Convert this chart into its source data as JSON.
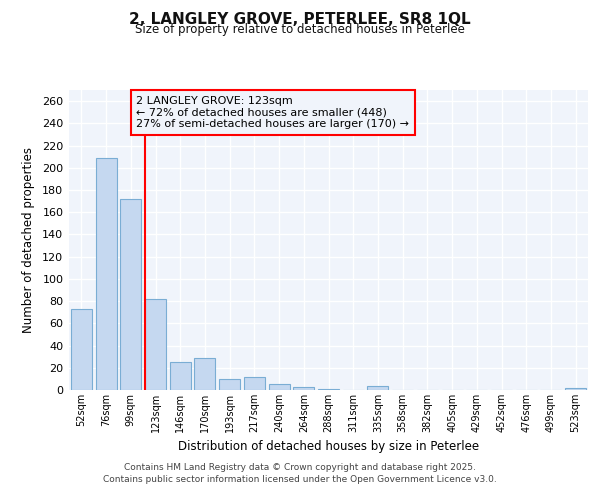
{
  "title1": "2, LANGLEY GROVE, PETERLEE, SR8 1QL",
  "title2": "Size of property relative to detached houses in Peterlee",
  "xlabel": "Distribution of detached houses by size in Peterlee",
  "ylabel": "Number of detached properties",
  "categories": [
    "52sqm",
    "76sqm",
    "99sqm",
    "123sqm",
    "146sqm",
    "170sqm",
    "193sqm",
    "217sqm",
    "240sqm",
    "264sqm",
    "288sqm",
    "311sqm",
    "335sqm",
    "358sqm",
    "382sqm",
    "405sqm",
    "429sqm",
    "452sqm",
    "476sqm",
    "499sqm",
    "523sqm"
  ],
  "values": [
    73,
    209,
    172,
    82,
    25,
    29,
    10,
    12,
    5,
    3,
    1,
    0,
    4,
    0,
    0,
    0,
    0,
    0,
    0,
    0,
    2
  ],
  "bar_color": "#c5d8f0",
  "bar_edge_color": "#7aadd4",
  "red_line_index": 3,
  "red_line_label": "2 LANGLEY GROVE: 123sqm",
  "annotation_line1": "← 72% of detached houses are smaller (448)",
  "annotation_line2": "27% of semi-detached houses are larger (170) →",
  "ylim": [
    0,
    270
  ],
  "yticks": [
    0,
    20,
    40,
    60,
    80,
    100,
    120,
    140,
    160,
    180,
    200,
    220,
    240,
    260
  ],
  "bg_color": "#ffffff",
  "plot_bg_color": "#f0f4fb",
  "grid_color": "#ffffff",
  "footer1": "Contains HM Land Registry data © Crown copyright and database right 2025.",
  "footer2": "Contains public sector information licensed under the Open Government Licence v3.0."
}
